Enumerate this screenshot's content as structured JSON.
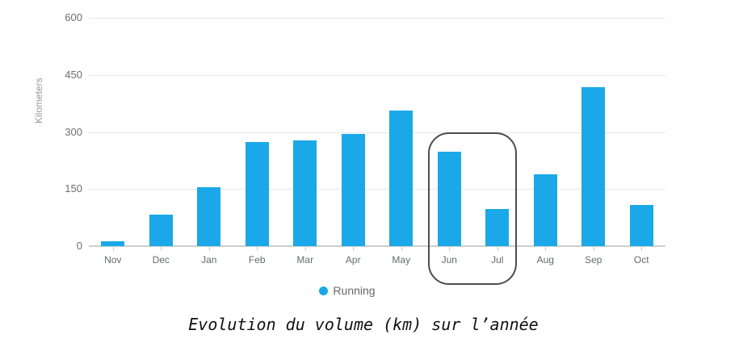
{
  "chart_data": {
    "type": "bar",
    "title": "Evolution du volume (km) sur l’année",
    "ylabel": "Kilometers",
    "xlabel": "",
    "categories": [
      "Nov",
      "Dec",
      "Jan",
      "Feb",
      "Mar",
      "Apr",
      "May",
      "Jun",
      "Jul",
      "Aug",
      "Sep",
      "Oct"
    ],
    "series": [
      {
        "name": "Running",
        "values": [
          13,
          82,
          155,
          273,
          277,
          295,
          357,
          248,
          97,
          188,
          417,
          108
        ]
      }
    ],
    "ylim": [
      0,
      600
    ],
    "yticks": [
      0,
      150,
      300,
      450,
      600
    ],
    "grid": true,
    "legend_position": "bottom-center",
    "colors": {
      "bar": "#1aa8e8",
      "gridline": "#e6e6e6",
      "axis_line": "#cfcfcf",
      "tick_text": "#6e6e6e",
      "annotation_border": "#4d4d4d",
      "caption_text": "#111111"
    },
    "annotation": {
      "shape": "rounded-rect-outline",
      "highlighted_categories": [
        "Jun",
        "Jul"
      ]
    }
  }
}
